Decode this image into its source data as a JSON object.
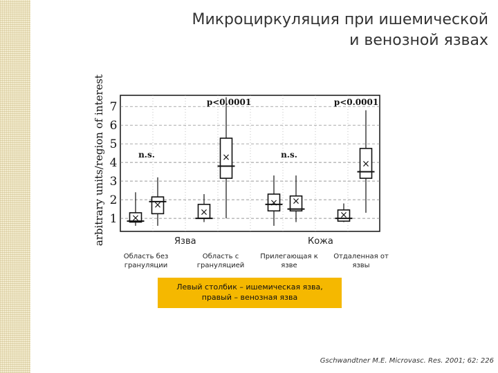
{
  "slide": {
    "title_line1": "Микроциркуляция при ишемической",
    "title_line2": "и венозной язвах",
    "group_ulcer": "Язва",
    "group_skin": "Кожа",
    "captions": [
      [
        "Область без",
        "грануляции"
      ],
      [
        "Область с",
        "грануляцией"
      ],
      [
        "Прилегающая к",
        "язве"
      ],
      [
        "Отдаленная от",
        "язвы"
      ]
    ],
    "note_line1": "Левый столбик – ишемическая язва,",
    "note_line2": "правый – венозная язва",
    "citation": "Gschwandtner M.E. Microvasc. Res. 2001; 62: 226",
    "accent_color": "#f5b800",
    "stripe_color": "#f3eccf"
  },
  "chart_data": {
    "type": "box",
    "ylabel": "arbitrary units/region of interest",
    "yticks": [
      1,
      2,
      3,
      4,
      5,
      6,
      7
    ],
    "ylim": [
      0.3,
      7.6
    ],
    "grid": true,
    "series": [
      {
        "name": "ischemic ulcer"
      },
      {
        "name": "venous ulcer"
      }
    ],
    "boxes": [
      {
        "group": 0,
        "series": 0,
        "whisker_low": 0.6,
        "q1": 0.8,
        "median": 0.85,
        "q3": 1.3,
        "whisker_high": 2.4,
        "mean": 1.05
      },
      {
        "group": 0,
        "series": 1,
        "whisker_low": 0.6,
        "q1": 1.25,
        "median": 1.9,
        "q3": 2.15,
        "whisker_high": 3.2,
        "mean": 1.75
      },
      {
        "group": 1,
        "series": 0,
        "whisker_low": 0.8,
        "q1": 1.0,
        "median": 1.0,
        "q3": 1.75,
        "whisker_high": 2.3,
        "mean": 1.35
      },
      {
        "group": 1,
        "series": 1,
        "whisker_low": 1.0,
        "q1": 3.15,
        "median": 3.8,
        "q3": 5.3,
        "whisker_high": 7.5,
        "mean": 4.3
      },
      {
        "group": 2,
        "series": 0,
        "whisker_low": 0.6,
        "q1": 1.4,
        "median": 1.75,
        "q3": 2.3,
        "whisker_high": 3.3,
        "mean": 1.85
      },
      {
        "group": 2,
        "series": 1,
        "whisker_low": 0.8,
        "q1": 1.4,
        "median": 1.5,
        "q3": 2.2,
        "whisker_high": 3.3,
        "mean": 1.95
      },
      {
        "group": 3,
        "series": 0,
        "whisker_low": 0.8,
        "q1": 0.85,
        "median": 1.0,
        "q3": 1.45,
        "whisker_high": 1.8,
        "mean": 1.2
      },
      {
        "group": 3,
        "series": 1,
        "whisker_low": 1.3,
        "q1": 3.15,
        "median": 3.5,
        "q3": 4.75,
        "whisker_high": 6.8,
        "mean": 3.95
      }
    ],
    "annotations": [
      {
        "text": "p<0.0001",
        "group": 1
      },
      {
        "text": "p<0.0001",
        "group": 3
      },
      {
        "text": "n.s.",
        "group": 0
      },
      {
        "text": "n.s.",
        "group": 2
      }
    ]
  }
}
